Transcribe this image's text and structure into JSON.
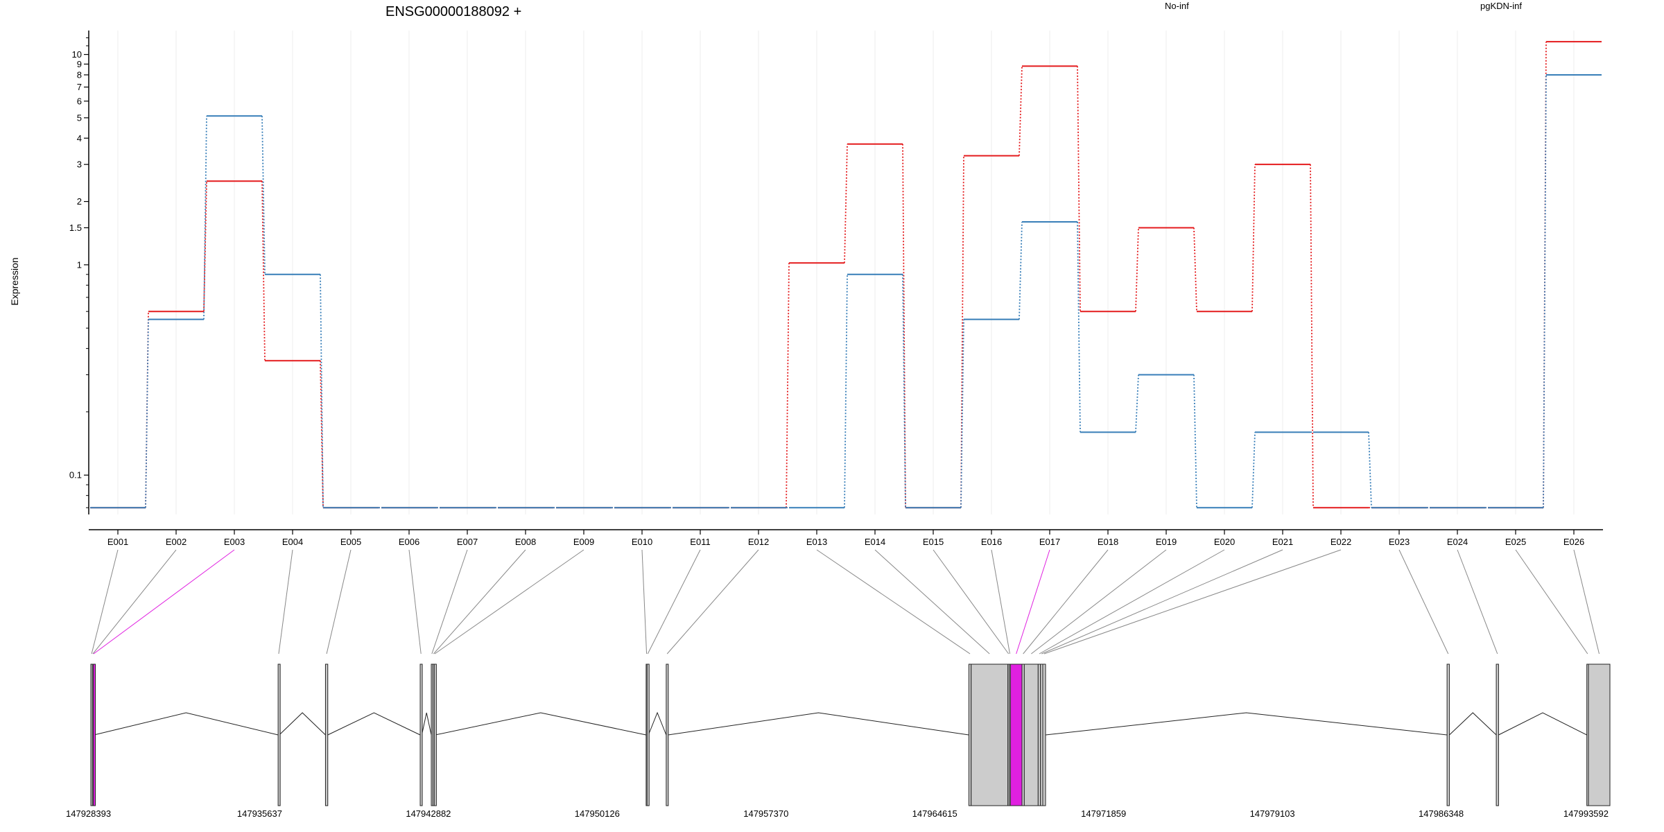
{
  "chart_data": {
    "type": "line",
    "title": "ENSG00000188092 +",
    "ylabel": "Expression",
    "yscale": "log",
    "ylim": [
      0.065,
      13
    ],
    "yticks": [
      0.1,
      1,
      1.5,
      2,
      3,
      4,
      5,
      6,
      7,
      8,
      9,
      10
    ],
    "ytick_labels": [
      "0.1",
      "1",
      "1.5",
      "2",
      "3",
      "4",
      "5",
      "6",
      "7",
      "8",
      "9",
      "10"
    ],
    "categories": [
      "E001",
      "E002",
      "E003",
      "E004",
      "E005",
      "E006",
      "E007",
      "E008",
      "E009",
      "E010",
      "E011",
      "E012",
      "E013",
      "E014",
      "E015",
      "E016",
      "E017",
      "E018",
      "E019",
      "E020",
      "E021",
      "E022",
      "E023",
      "E024",
      "E025",
      "E026"
    ],
    "series": [
      {
        "name": "No-inf",
        "color": "#e41a1c",
        "values": [
          0.07,
          0.6,
          2.5,
          0.35,
          0.07,
          0.07,
          0.07,
          0.07,
          0.07,
          0.07,
          0.07,
          0.07,
          1.02,
          3.75,
          0.07,
          3.3,
          8.8,
          0.6,
          1.5,
          0.6,
          3.0,
          0.07,
          0.07,
          0.07,
          0.07,
          11.5
        ]
      },
      {
        "name": "pgKDN-inf",
        "color": "#377eb8",
        "values": [
          0.07,
          0.55,
          5.1,
          0.9,
          0.07,
          0.07,
          0.07,
          0.07,
          0.07,
          0.07,
          0.07,
          0.07,
          0.07,
          0.9,
          0.07,
          0.55,
          1.6,
          0.16,
          0.3,
          0.07,
          0.16,
          0.16,
          0.07,
          0.07,
          0.07,
          8.0
        ]
      }
    ],
    "highlight_color": "#e020e0",
    "highlighted_exons": [
      "E003",
      "E017"
    ],
    "gene_model": {
      "coordinate_labels": [
        "147928393",
        "147935637",
        "147942882",
        "147950126",
        "147957370",
        "147964615",
        "147971859",
        "147979103",
        "147986348",
        "147993592"
      ],
      "exons": [
        {
          "id": "E001",
          "start": 147928393,
          "end": 147928460
        },
        {
          "id": "E002",
          "start": 147928460,
          "end": 147928500
        },
        {
          "id": "E003",
          "start": 147928500,
          "end": 147928530
        },
        {
          "id": "E004",
          "start": 147936500,
          "end": 147936550
        },
        {
          "id": "E005",
          "start": 147938550,
          "end": 147938650
        },
        {
          "id": "E006",
          "start": 147942650,
          "end": 147942720
        },
        {
          "id": "E007",
          "start": 147943130,
          "end": 147943180
        },
        {
          "id": "E008",
          "start": 147943200,
          "end": 147943260
        },
        {
          "id": "E009",
          "start": 147943260,
          "end": 147943300
        },
        {
          "id": "E010",
          "start": 147952430,
          "end": 147952470
        },
        {
          "id": "E011",
          "start": 147952470,
          "end": 147952530
        },
        {
          "id": "E012",
          "start": 147953300,
          "end": 147953380
        },
        {
          "id": "E013",
          "start": 147966400,
          "end": 147966500
        },
        {
          "id": "E014",
          "start": 147966500,
          "end": 147968090
        },
        {
          "id": "E015",
          "start": 147968090,
          "end": 147968150
        },
        {
          "id": "E016",
          "start": 147968150,
          "end": 147968200
        },
        {
          "id": "E017",
          "start": 147968200,
          "end": 147968700
        },
        {
          "id": "E018",
          "start": 147968700,
          "end": 147968800
        },
        {
          "id": "E019",
          "start": 147968800,
          "end": 147969400
        },
        {
          "id": "E020",
          "start": 147969400,
          "end": 147969500
        },
        {
          "id": "E021",
          "start": 147969500,
          "end": 147969600
        },
        {
          "id": "E022",
          "start": 147969600,
          "end": 147969720
        },
        {
          "id": "E023",
          "start": 147987100,
          "end": 147987200
        },
        {
          "id": "E024",
          "start": 147989230,
          "end": 147989330
        },
        {
          "id": "E025",
          "start": 147993150,
          "end": 147993220
        },
        {
          "id": "E026",
          "start": 147993220,
          "end": 147994150
        }
      ]
    }
  }
}
